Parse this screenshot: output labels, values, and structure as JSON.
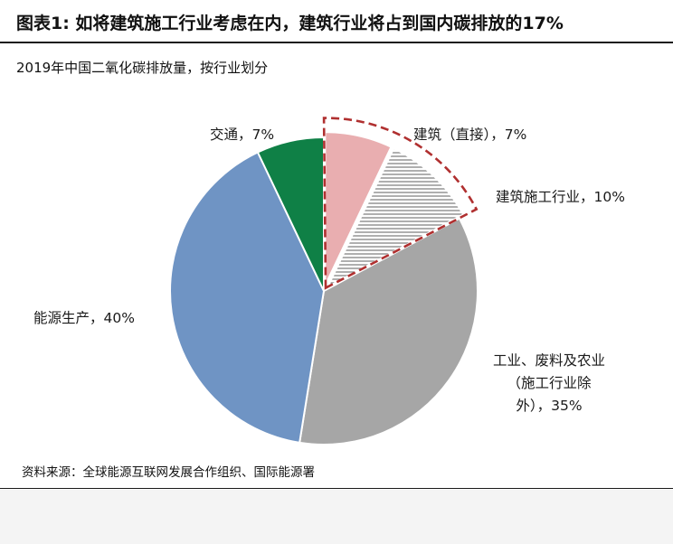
{
  "title": "图表1: 如将建筑施工行业考虑在内，建筑行业将占到国内碳排放的17%",
  "subtitle": "2019年中国二氧化碳排放量，按行业划分",
  "source": "资料来源：全球能源互联网发展合作组织、国际能源署",
  "chart_data": {
    "type": "pie",
    "start_angle_deg": 0,
    "direction": "clockwise",
    "slices": [
      {
        "label": "建筑（直接）",
        "value": 7,
        "display": "建筑（直接），7%",
        "color": "#e9aeb0",
        "pattern": "solid",
        "highlighted": true
      },
      {
        "label": "建筑施工行业",
        "value": 10,
        "display": "建筑施工行业，10%",
        "color": "#ffffff",
        "pattern": "horizontal-hatch",
        "highlighted": true
      },
      {
        "label": "工业、废料及农业（施工行业除外）",
        "value": 35,
        "display_lines": [
          "工业、废料及农业",
          "（施工行业除",
          "外），35%"
        ],
        "color": "#a6a6a6",
        "pattern": "solid",
        "highlighted": false
      },
      {
        "label": "能源生产",
        "value": 40,
        "display": "能源生产，40%",
        "color": "#6f94c4",
        "pattern": "solid",
        "highlighted": false
      },
      {
        "label": "交通",
        "value": 7,
        "display": "交通，7%",
        "color": "#0f8046",
        "pattern": "solid",
        "highlighted": false
      }
    ],
    "highlight_outline": {
      "style": "dashed",
      "color": "#b03030"
    }
  }
}
